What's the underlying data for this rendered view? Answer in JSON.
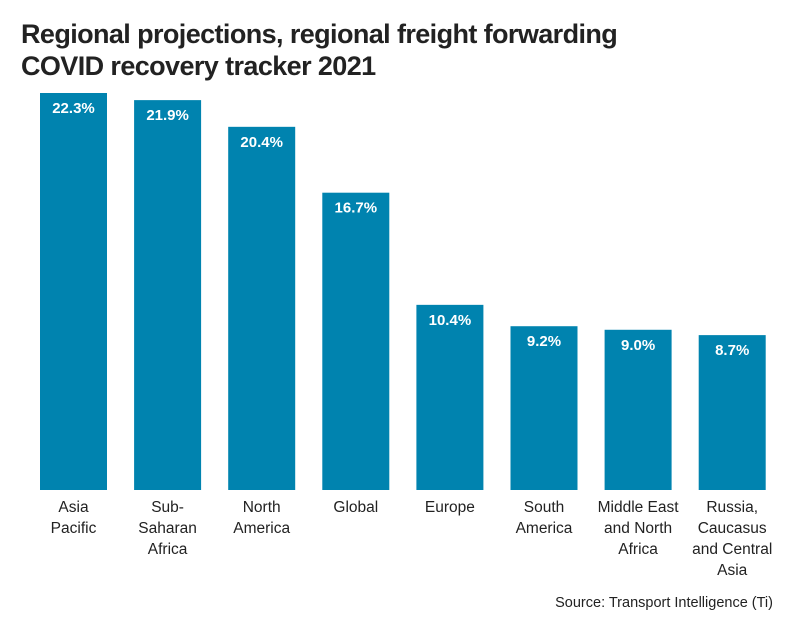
{
  "chart_data": {
    "type": "bar",
    "title": "Regional projections, regional freight forwarding COVID recovery tracker 2021",
    "title_lines": [
      "Regional projections, regional freight forwarding",
      "COVID recovery tracker 2021"
    ],
    "categories": [
      "Asia Pacific",
      "Sub-Saharan Africa",
      "North America",
      "Global",
      "Europe",
      "South America",
      "Middle East and North Africa",
      "Russia, Caucasus and Central Asia"
    ],
    "category_lines": [
      [
        "Asia",
        "Pacific"
      ],
      [
        "Sub-",
        "Saharan",
        "Africa"
      ],
      [
        "North",
        "America"
      ],
      [
        "Global"
      ],
      [
        "Europe"
      ],
      [
        "South",
        "America"
      ],
      [
        "Middle East",
        "and North",
        "Africa"
      ],
      [
        "Russia,",
        "Caucasus",
        "and Central",
        "Asia"
      ]
    ],
    "values": [
      22.3,
      21.9,
      20.4,
      16.7,
      10.4,
      9.2,
      9.0,
      8.7
    ],
    "data_labels": [
      "22.3%",
      "21.9%",
      "20.4%",
      "16.7%",
      "10.4%",
      "9.2%",
      "9.0%",
      "8.7%"
    ],
    "unit": "%",
    "xlabel": "",
    "ylabel": "",
    "ylim": [
      0,
      22.3
    ],
    "grid": false,
    "legend": "none",
    "bar_color": "#0083AF",
    "source": "Source: Transport Intelligence (Ti)"
  }
}
